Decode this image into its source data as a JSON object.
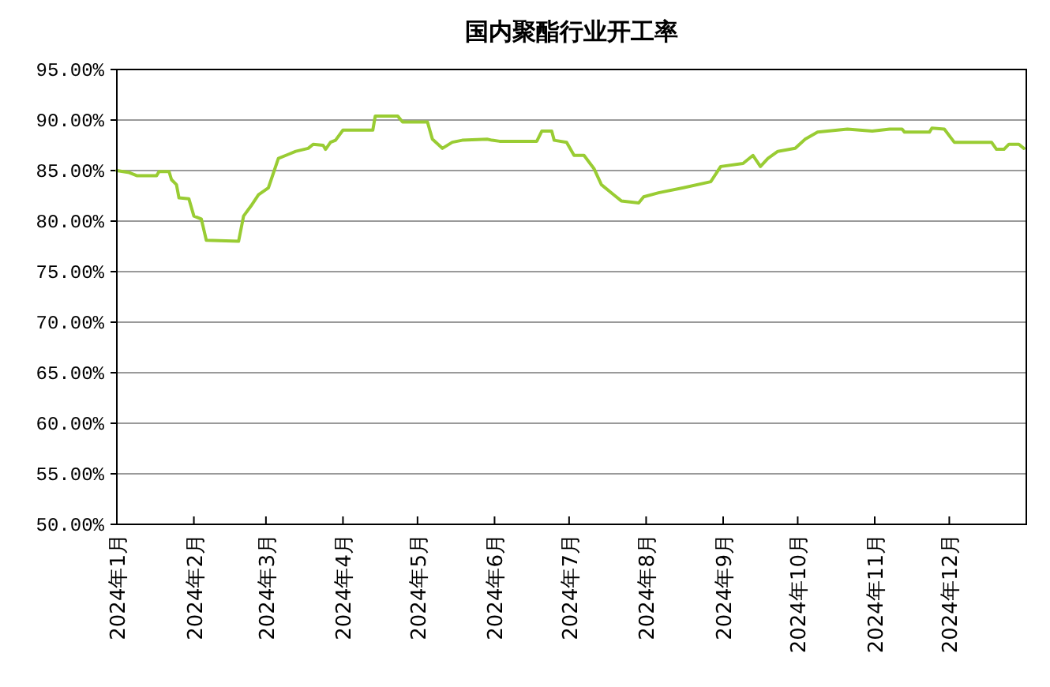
{
  "chart_data": {
    "type": "line",
    "title": "国内聚酯行业开工率",
    "x": [
      "2024-01-01",
      "2024-01-06",
      "2024-01-09",
      "2024-01-17",
      "2024-01-18",
      "2024-01-22",
      "2024-01-23",
      "2024-01-25",
      "2024-01-26",
      "2024-01-30",
      "2024-02-01",
      "2024-02-04",
      "2024-02-06",
      "2024-02-19",
      "2024-02-21",
      "2024-02-24",
      "2024-02-27",
      "2024-03-02",
      "2024-03-06",
      "2024-03-10",
      "2024-03-13",
      "2024-03-18",
      "2024-03-20",
      "2024-03-24",
      "2024-03-25",
      "2024-03-27",
      "2024-03-29",
      "2024-04-01",
      "2024-04-13",
      "2024-04-14",
      "2024-04-23",
      "2024-04-25",
      "2024-05-05",
      "2024-05-07",
      "2024-05-11",
      "2024-05-15",
      "2024-05-19",
      "2024-05-29",
      "2024-05-31",
      "2024-06-03",
      "2024-06-18",
      "2024-06-20",
      "2024-06-24",
      "2024-06-25",
      "2024-06-30",
      "2024-07-03",
      "2024-07-07",
      "2024-07-11",
      "2024-07-14",
      "2024-07-19",
      "2024-07-22",
      "2024-07-29",
      "2024-07-31",
      "2024-08-06",
      "2024-08-16",
      "2024-08-27",
      "2024-08-31",
      "2024-09-09",
      "2024-09-13",
      "2024-09-16",
      "2024-09-19",
      "2024-09-23",
      "2024-09-30",
      "2024-10-04",
      "2024-10-09",
      "2024-10-21",
      "2024-10-31",
      "2024-11-07",
      "2024-11-12",
      "2024-11-13",
      "2024-11-23",
      "2024-11-24",
      "2024-11-29",
      "2024-12-03",
      "2024-12-18",
      "2024-12-20",
      "2024-12-23",
      "2024-12-25",
      "2024-12-29",
      "2024-12-31"
    ],
    "series": [
      {
        "color": "#99cc33",
        "values": [
          85.0,
          84.8,
          84.5,
          84.5,
          84.9,
          84.9,
          84.1,
          83.6,
          82.3,
          82.2,
          80.5,
          80.2,
          78.1,
          78.0,
          80.5,
          81.5,
          82.6,
          83.3,
          86.2,
          86.6,
          86.9,
          87.2,
          87.6,
          87.5,
          87.1,
          87.8,
          88.0,
          89.0,
          89.0,
          90.4,
          90.4,
          89.8,
          89.8,
          88.1,
          87.2,
          87.8,
          88.0,
          88.1,
          88.0,
          87.9,
          87.9,
          88.9,
          88.9,
          88.0,
          87.8,
          86.5,
          86.5,
          85.2,
          83.6,
          82.6,
          82.0,
          81.8,
          82.4,
          82.8,
          83.3,
          83.9,
          85.4,
          85.7,
          86.5,
          85.4,
          86.2,
          86.9,
          87.2,
          88.1,
          88.8,
          89.1,
          88.9,
          89.1,
          89.1,
          88.8,
          88.8,
          89.2,
          89.1,
          87.8,
          87.8,
          87.1,
          87.1,
          87.6,
          87.6,
          87.2
        ]
      }
    ],
    "xlim": [
      "2024-01-01",
      "2025-01-01"
    ],
    "xticks": [
      {
        "value": "2024-01-01",
        "label": "2024年1月"
      },
      {
        "value": "2024-02-01",
        "label": "2024年2月"
      },
      {
        "value": "2024-03-01",
        "label": "2024年3月"
      },
      {
        "value": "2024-04-01",
        "label": "2024年4月"
      },
      {
        "value": "2024-05-01",
        "label": "2024年5月"
      },
      {
        "value": "2024-06-01",
        "label": "2024年6月"
      },
      {
        "value": "2024-07-01",
        "label": "2024年7月"
      },
      {
        "value": "2024-08-01",
        "label": "2024年8月"
      },
      {
        "value": "2024-09-01",
        "label": "2024年9月"
      },
      {
        "value": "2024-10-01",
        "label": "2024年10月"
      },
      {
        "value": "2024-11-01",
        "label": "2024年11月"
      },
      {
        "value": "2024-12-01",
        "label": "2024年12月"
      },
      {
        "value": "2025-01-01",
        "label": null
      }
    ],
    "ylim": [
      50,
      95
    ],
    "yticks": [
      {
        "value": 50,
        "label": "50.00%"
      },
      {
        "value": 55,
        "label": "55.00%"
      },
      {
        "value": 60,
        "label": "60.00%"
      },
      {
        "value": 65,
        "label": "65.00%"
      },
      {
        "value": 70,
        "label": "70.00%"
      },
      {
        "value": 75,
        "label": "75.00%"
      },
      {
        "value": 80,
        "label": "80.00%"
      },
      {
        "value": 85,
        "label": "85.00%"
      },
      {
        "value": 90,
        "label": "90.00%"
      },
      {
        "value": 95,
        "label": "95.00%"
      }
    ],
    "grid": "y",
    "line_style": "solid"
  }
}
